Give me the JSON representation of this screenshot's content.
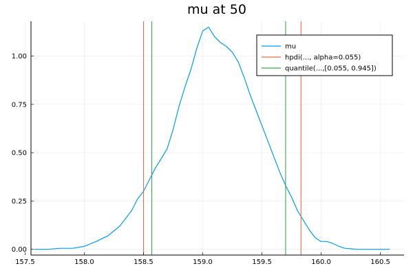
{
  "chart_data": {
    "type": "line",
    "title": "mu at 50",
    "xlabel": "",
    "ylabel": "",
    "xlim": [
      157.55,
      160.7
    ],
    "ylim": [
      -0.03,
      1.18
    ],
    "grid": true,
    "legend_position": "top-right",
    "x_ticks": [
      157.5,
      158.0,
      158.5,
      159.0,
      159.5,
      160.0,
      160.5
    ],
    "x_tick_labels": [
      "157.5",
      "158.0",
      "158.5",
      "159.0",
      "159.5",
      "160.0",
      "160.5"
    ],
    "y_ticks": [
      0.0,
      0.25,
      0.5,
      0.75,
      1.0
    ],
    "y_tick_labels": [
      "0.00",
      "0.25",
      "0.50",
      "0.75",
      "1.00"
    ],
    "series": [
      {
        "name": "mu",
        "kind": "density",
        "color": "#009AFA",
        "x": [
          157.58,
          157.7,
          157.8,
          157.9,
          158.0,
          158.1,
          158.2,
          158.3,
          158.4,
          158.45,
          158.5,
          158.55,
          158.6,
          158.65,
          158.7,
          158.75,
          158.8,
          158.85,
          158.9,
          158.95,
          159.0,
          159.05,
          159.1,
          159.15,
          159.2,
          159.25,
          159.3,
          159.35,
          159.4,
          159.45,
          159.5,
          159.55,
          159.6,
          159.65,
          159.7,
          159.75,
          159.8,
          159.85,
          159.9,
          159.95,
          160.0,
          160.05,
          160.1,
          160.15,
          160.2,
          160.3,
          160.4,
          160.5,
          160.58
        ],
        "y": [
          0.0,
          0.0,
          0.005,
          0.005,
          0.015,
          0.04,
          0.07,
          0.12,
          0.2,
          0.26,
          0.3,
          0.36,
          0.42,
          0.47,
          0.52,
          0.62,
          0.74,
          0.84,
          0.93,
          1.04,
          1.13,
          1.15,
          1.1,
          1.07,
          1.05,
          1.02,
          0.97,
          0.89,
          0.8,
          0.72,
          0.64,
          0.56,
          0.48,
          0.4,
          0.33,
          0.27,
          0.2,
          0.15,
          0.1,
          0.06,
          0.04,
          0.04,
          0.03,
          0.015,
          0.005,
          0.0,
          0.0,
          0.0,
          0.0
        ]
      },
      {
        "name": "hpdi(..., alpha=0.055)",
        "kind": "vlines",
        "color": "#E26F46",
        "x": [
          158.5,
          159.83
        ]
      },
      {
        "name": "quantile(...,[0.055, 0.945])",
        "kind": "vlines",
        "color": "#3DA44D",
        "x": [
          158.57,
          159.7
        ]
      }
    ]
  }
}
